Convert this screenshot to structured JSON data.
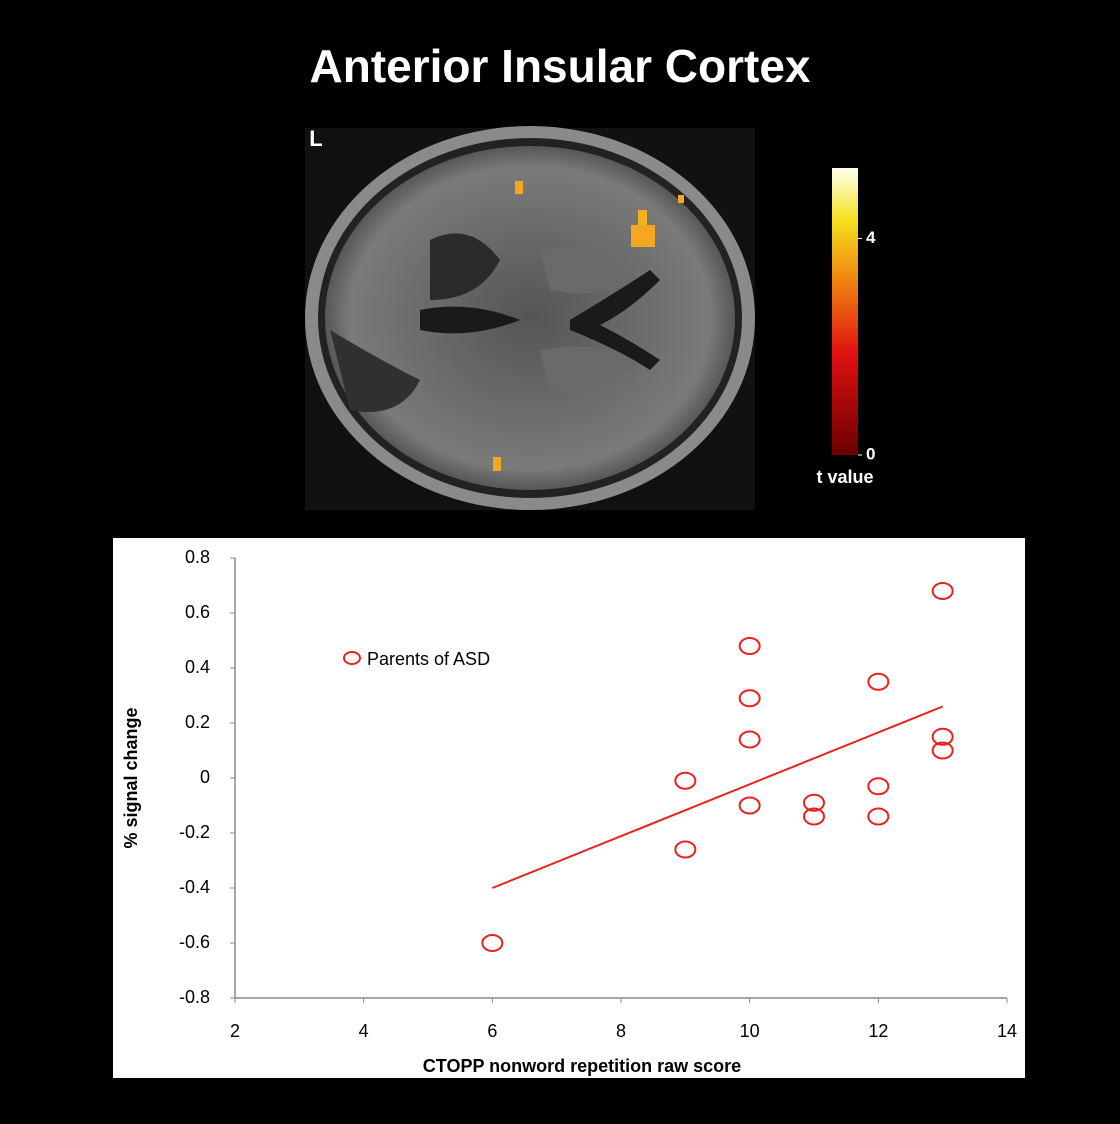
{
  "title": "Anterior Insular Cortex",
  "brain_image": {
    "side_label": "L",
    "colorbar": {
      "label": "t value",
      "lim": [
        0,
        5.3
      ],
      "ticks": [
        0,
        4
      ]
    }
  },
  "chart_data": {
    "type": "scatter",
    "xlabel": "CTOPP nonword repetition raw score",
    "ylabel": "% signal change",
    "xlim": [
      2,
      14
    ],
    "xticks": [
      2,
      4,
      6,
      8,
      10,
      12,
      14
    ],
    "ylim": [
      -0.8,
      0.8
    ],
    "yticks": [
      -0.8,
      -0.6,
      -0.4,
      -0.2,
      0,
      0.2,
      0.4,
      0.6,
      0.8
    ],
    "legend": "upper left",
    "series": [
      {
        "name": "Parents of ASD",
        "color": "#e8231f",
        "x": [
          13,
          10,
          10,
          12,
          10,
          13,
          13,
          9,
          12,
          10,
          11,
          11,
          12,
          9,
          6
        ],
        "values": [
          0.68,
          0.48,
          0.29,
          0.35,
          0.14,
          0.15,
          0.1,
          -0.01,
          -0.03,
          -0.1,
          -0.09,
          -0.14,
          -0.14,
          -0.26,
          -0.6
        ]
      }
    ],
    "trendline": {
      "color": "#e8231f",
      "x": [
        6,
        13
      ],
      "values": [
        -0.4,
        0.26
      ]
    }
  }
}
